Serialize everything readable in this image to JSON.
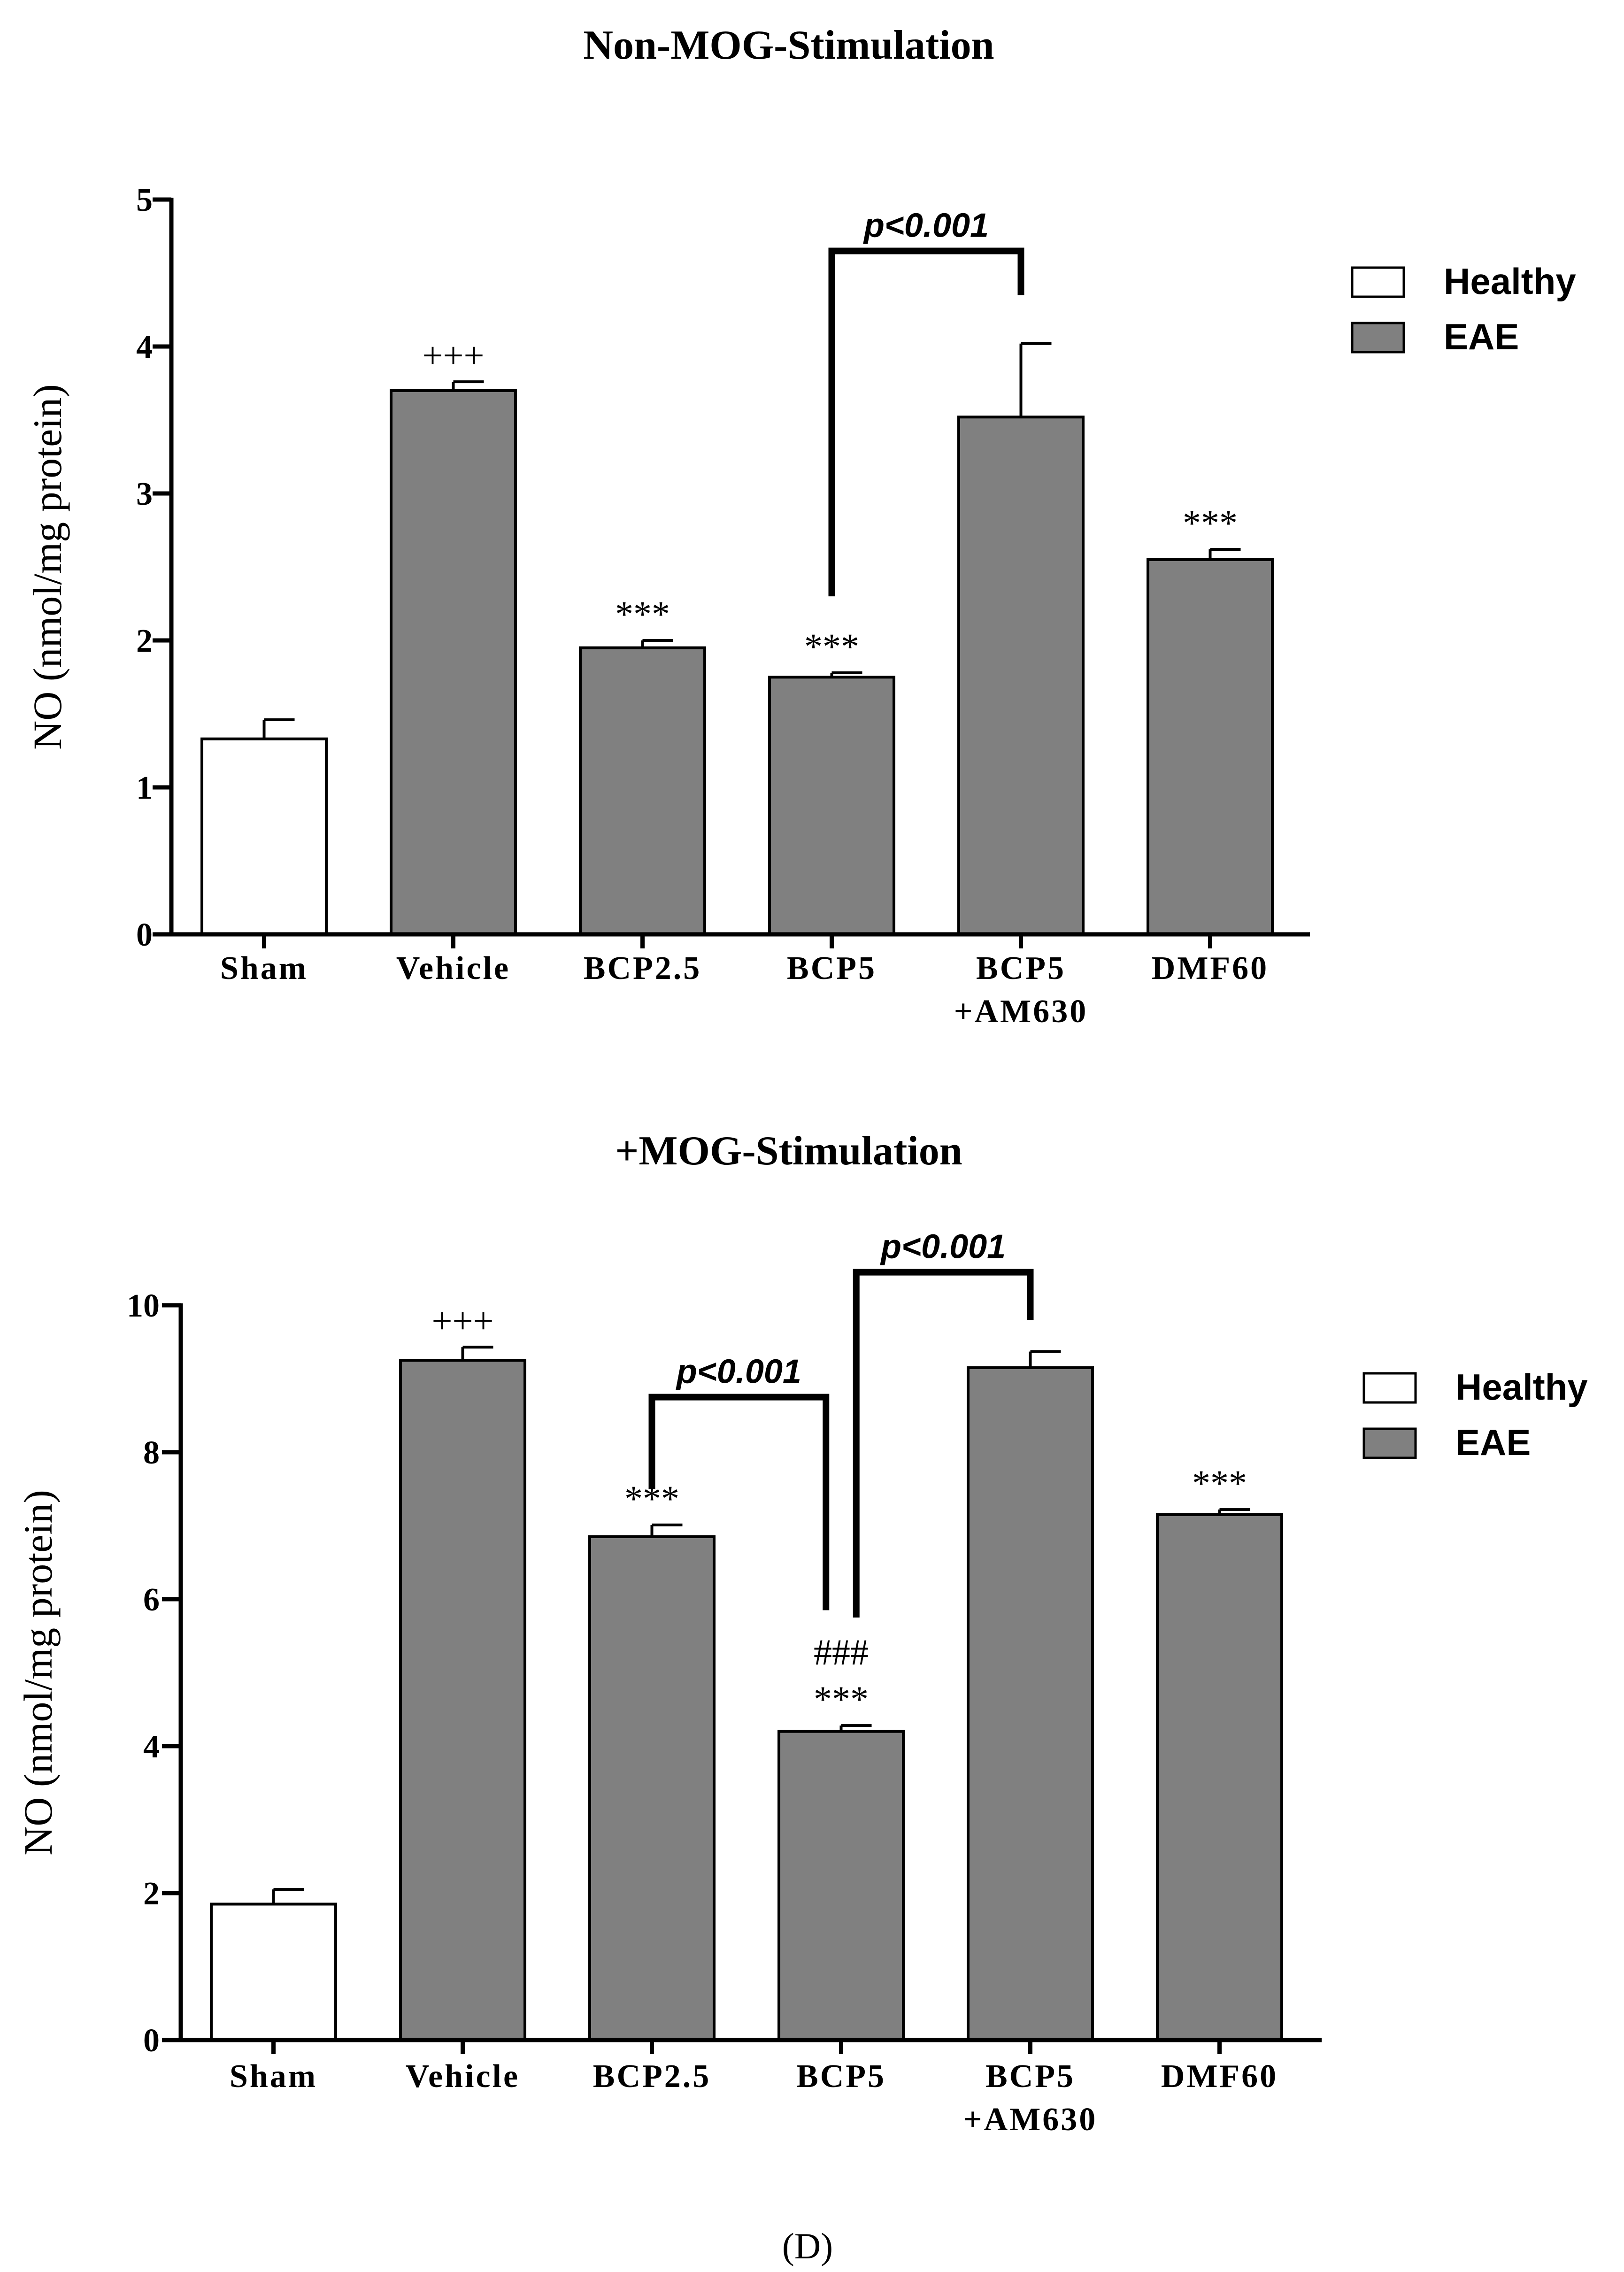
{
  "figure_label": "(D)",
  "chart_data": [
    {
      "type": "bar",
      "title": "Non-MOG-Stimulation",
      "ylabel": "NO (nmol/mg protein)",
      "xlabel": "",
      "ylim": [
        0,
        5
      ],
      "yticks": [
        "0",
        "1",
        "2",
        "3",
        "4",
        "5"
      ],
      "categories": [
        [
          "Sham"
        ],
        [
          "Vehicle"
        ],
        [
          "BCP2.5"
        ],
        [
          "BCP5"
        ],
        [
          "BCP5",
          "+AM630"
        ],
        [
          "DMF60"
        ]
      ],
      "values": [
        1.33,
        3.7,
        1.95,
        1.75,
        3.52,
        2.55
      ],
      "errors": [
        0.13,
        0.06,
        0.05,
        0.03,
        0.5,
        0.07
      ],
      "groups": [
        "Healthy",
        "EAE",
        "EAE",
        "EAE",
        "EAE",
        "EAE"
      ],
      "annotations": [
        "",
        "+++",
        "***",
        "***",
        "",
        "***"
      ],
      "second_annotations": [
        "",
        "",
        "",
        "",
        "",
        ""
      ],
      "brackets": [
        {
          "from": 3,
          "to": 4,
          "label": "p<0.001",
          "left_y": 2.3,
          "right_y": 4.35,
          "top_y": 4.65
        }
      ],
      "legend": {
        "position": "top-right",
        "entries": [
          {
            "label": "Healthy",
            "color": "#ffffff"
          },
          {
            "label": "EAE",
            "color": "#808080"
          }
        ]
      }
    },
    {
      "type": "bar",
      "title": "+MOG-Stimulation",
      "ylabel": "NO (nmol/mg protein)",
      "xlabel": "",
      "ylim": [
        0,
        10
      ],
      "yticks": [
        "0",
        "2",
        "4",
        "6",
        "8",
        "10"
      ],
      "categories": [
        [
          "Sham"
        ],
        [
          "Vehicle"
        ],
        [
          "BCP2.5"
        ],
        [
          "BCP5"
        ],
        [
          "BCP5",
          "+AM630"
        ],
        [
          "DMF60"
        ]
      ],
      "values": [
        1.85,
        9.25,
        6.85,
        4.2,
        9.15,
        7.15
      ],
      "errors": [
        0.2,
        0.18,
        0.16,
        0.08,
        0.22,
        0.07
      ],
      "groups": [
        "Healthy",
        "EAE",
        "EAE",
        "EAE",
        "EAE",
        "EAE"
      ],
      "annotations": [
        "",
        "+++",
        "***",
        "***",
        "",
        "***"
      ],
      "second_annotations": [
        "",
        "",
        "",
        "###",
        "",
        ""
      ],
      "brackets": [
        {
          "from": 2,
          "to": 3,
          "label": "p<0.001",
          "left_y": 7.5,
          "right_y": 5.85,
          "top_y": 8.75,
          "right_offset": -0.08
        },
        {
          "from": 3,
          "to": 4,
          "label": "p<0.001",
          "left_y": 5.75,
          "right_y": 9.8,
          "top_y": 10.45,
          "left_offset": 0.08
        }
      ],
      "legend": {
        "position": "top-right",
        "entries": [
          {
            "label": "Healthy",
            "color": "#ffffff"
          },
          {
            "label": "EAE",
            "color": "#808080"
          }
        ]
      }
    }
  ]
}
